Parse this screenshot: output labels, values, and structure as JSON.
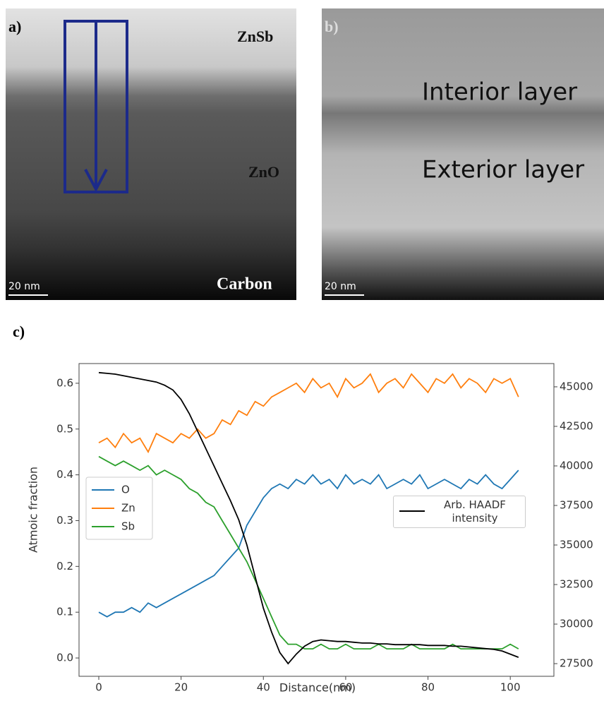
{
  "panels": {
    "a": {
      "label": "a)",
      "top": "ZnSb",
      "middle": "ZnO",
      "bottom": "Carbon",
      "scale": "20 nm"
    },
    "b": {
      "label": "b)",
      "top": "Interior layer",
      "middle": "Exterior layer",
      "scale": "20 nm"
    },
    "c": {
      "label": "c)"
    }
  },
  "chart_data": {
    "type": "line",
    "x_label": "Distance(nm)",
    "y_label": "Atmoic fraction",
    "x": [
      0,
      2,
      4,
      6,
      8,
      10,
      12,
      14,
      16,
      18,
      20,
      22,
      24,
      26,
      28,
      30,
      32,
      34,
      36,
      38,
      40,
      42,
      44,
      46,
      48,
      50,
      52,
      54,
      56,
      58,
      60,
      62,
      64,
      66,
      68,
      70,
      72,
      74,
      76,
      78,
      80,
      82,
      84,
      86,
      88,
      90,
      92,
      94,
      96,
      98,
      100,
      102
    ],
    "series": [
      {
        "name": "O",
        "color": "#1f77b4",
        "values": [
          0.1,
          0.09,
          0.1,
          0.1,
          0.11,
          0.1,
          0.12,
          0.11,
          0.12,
          0.13,
          0.14,
          0.15,
          0.16,
          0.17,
          0.18,
          0.2,
          0.22,
          0.24,
          0.29,
          0.32,
          0.35,
          0.37,
          0.38,
          0.37,
          0.39,
          0.38,
          0.4,
          0.38,
          0.39,
          0.37,
          0.4,
          0.38,
          0.39,
          0.38,
          0.4,
          0.37,
          0.38,
          0.39,
          0.38,
          0.4,
          0.37,
          0.38,
          0.39,
          0.38,
          0.37,
          0.39,
          0.38,
          0.4,
          0.38,
          0.37,
          0.39,
          0.41
        ]
      },
      {
        "name": "Zn",
        "color": "#ff7f0e",
        "values": [
          0.47,
          0.48,
          0.46,
          0.49,
          0.47,
          0.48,
          0.45,
          0.49,
          0.48,
          0.47,
          0.49,
          0.48,
          0.5,
          0.48,
          0.49,
          0.52,
          0.51,
          0.54,
          0.53,
          0.56,
          0.55,
          0.57,
          0.58,
          0.59,
          0.6,
          0.58,
          0.61,
          0.59,
          0.6,
          0.57,
          0.61,
          0.59,
          0.6,
          0.62,
          0.58,
          0.6,
          0.61,
          0.59,
          0.62,
          0.6,
          0.58,
          0.61,
          0.6,
          0.62,
          0.59,
          0.61,
          0.6,
          0.58,
          0.61,
          0.6,
          0.61,
          0.57
        ]
      },
      {
        "name": "Sb",
        "color": "#2ca02c",
        "values": [
          0.44,
          0.43,
          0.42,
          0.43,
          0.42,
          0.41,
          0.42,
          0.4,
          0.41,
          0.4,
          0.39,
          0.37,
          0.36,
          0.34,
          0.33,
          0.3,
          0.27,
          0.24,
          0.21,
          0.17,
          0.13,
          0.09,
          0.05,
          0.03,
          0.03,
          0.02,
          0.02,
          0.03,
          0.02,
          0.02,
          0.03,
          0.02,
          0.02,
          0.02,
          0.03,
          0.02,
          0.02,
          0.02,
          0.03,
          0.02,
          0.02,
          0.02,
          0.02,
          0.03,
          0.02,
          0.02,
          0.02,
          0.02,
          0.02,
          0.02,
          0.03,
          0.02
        ]
      },
      {
        "name": "Arb. HAADF intensity",
        "color": "#000000",
        "axis": "y2",
        "values": [
          45900,
          45850,
          45800,
          45700,
          45600,
          45500,
          45400,
          45300,
          45100,
          44800,
          44200,
          43300,
          42200,
          41100,
          40000,
          38900,
          37800,
          36600,
          35000,
          33000,
          31000,
          29500,
          28200,
          27500,
          28100,
          28600,
          28900,
          29000,
          28950,
          28900,
          28900,
          28850,
          28800,
          28800,
          28750,
          28750,
          28700,
          28700,
          28700,
          28700,
          28650,
          28650,
          28650,
          28600,
          28600,
          28550,
          28500,
          28450,
          28400,
          28300,
          28100,
          27900
        ]
      }
    ],
    "xlim": [
      -4.8,
      110.6
    ],
    "xticks": [
      0,
      20,
      40,
      60,
      80,
      100
    ],
    "ylim": [
      -0.04,
      0.643
    ],
    "yticks": [
      {
        "value": 0,
        "label": "0.0"
      },
      0.1,
      0.2,
      0.3,
      0.4,
      0.5,
      0.6
    ],
    "y2lim": [
      26700,
      46470
    ],
    "y2ticks": [
      27500,
      30000,
      32500,
      35000,
      37500,
      40000,
      42500,
      45000
    ]
  }
}
